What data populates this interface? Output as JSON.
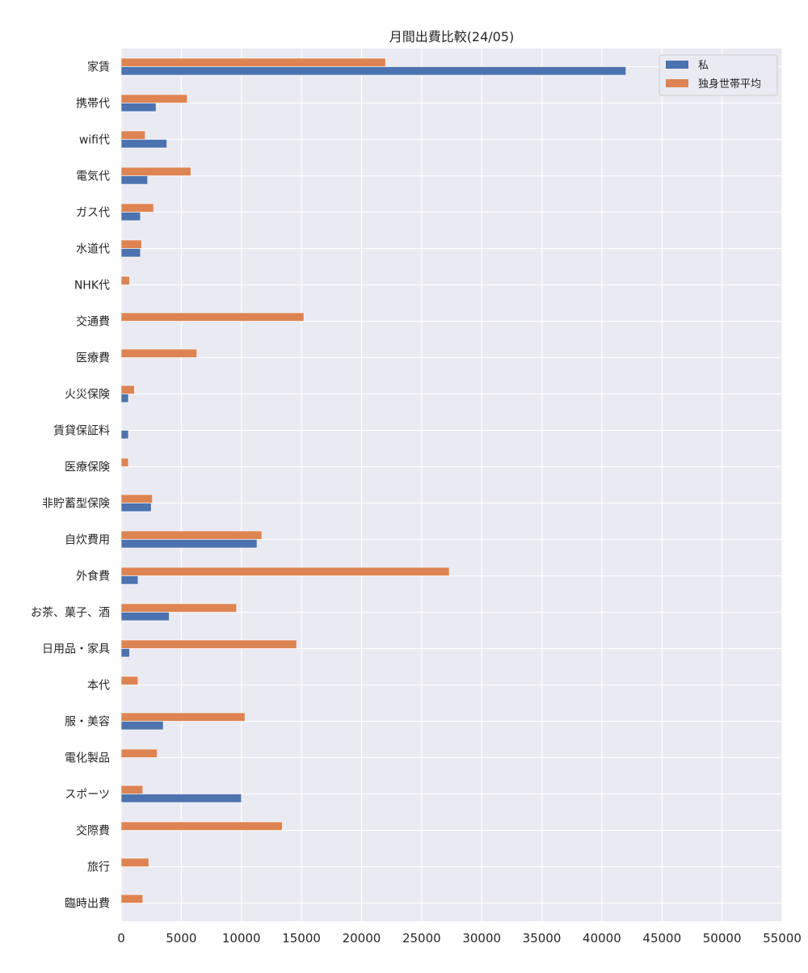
{
  "chart_data": {
    "type": "bar",
    "orientation": "horizontal",
    "title": "月間出費比較(24/05)",
    "xlabel": "",
    "ylabel": "",
    "xlim": [
      0,
      55000
    ],
    "xticks": [
      0,
      5000,
      10000,
      15000,
      20000,
      25000,
      30000,
      35000,
      40000,
      45000,
      50000,
      55000
    ],
    "grid": true,
    "legend_position": "top-right",
    "categories": [
      "家賃",
      "携帯代",
      "wifi代",
      "電気代",
      "ガス代",
      "水道代",
      "NHK代",
      "交通費",
      "医療費",
      "火災保険",
      "賃貸保証料",
      "医療保険",
      "非貯蓄型保険",
      "自炊費用",
      "外食費",
      "お茶、菓子、酒",
      "日用品・家具",
      "本代",
      "服・美容",
      "電化製品",
      "スポーツ",
      "交際費",
      "旅行",
      "臨時出費"
    ],
    "series": [
      {
        "name": "私",
        "color": "#4c72b0",
        "values": [
          42000,
          2900,
          3800,
          2200,
          1600,
          1600,
          0,
          0,
          0,
          600,
          600,
          0,
          2500,
          11300,
          1400,
          4000,
          700,
          0,
          3500,
          0,
          10000,
          0,
          0,
          0
        ]
      },
      {
        "name": "独身世帯平均",
        "color": "#dd8452",
        "values": [
          22000,
          5500,
          2000,
          5800,
          2700,
          1700,
          700,
          15200,
          6300,
          1100,
          0,
          600,
          2600,
          11700,
          27300,
          9600,
          14600,
          1400,
          10300,
          3000,
          1800,
          13400,
          2300,
          1800
        ]
      }
    ]
  }
}
